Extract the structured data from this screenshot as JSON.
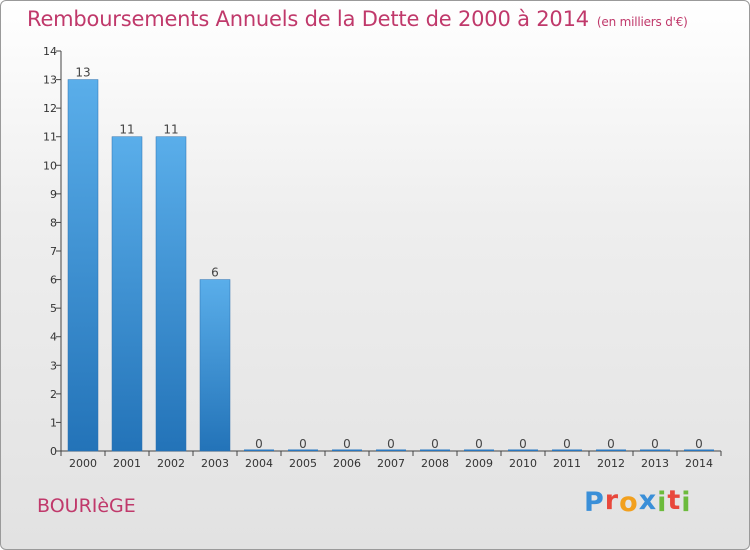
{
  "header": {
    "title": "Remboursements Annuels de la Dette de 2000 à 2014",
    "unit": "(en milliers d'€)"
  },
  "footer": {
    "commune": "BOURIèGE",
    "logo_text": "Proxiti",
    "logo_colors": [
      "#3a8fd8",
      "#e8483c",
      "#f2a01e",
      "#3a8fd8",
      "#6cbb3c",
      "#e8483c",
      "#6cbb3c"
    ]
  },
  "chart_data": {
    "type": "bar",
    "title": "Remboursements Annuels de la Dette de 2000 à 2014",
    "categories": [
      "2000",
      "2001",
      "2002",
      "2003",
      "2004",
      "2005",
      "2006",
      "2007",
      "2008",
      "2009",
      "2010",
      "2011",
      "2012",
      "2013",
      "2014"
    ],
    "values": [
      13,
      11,
      11,
      6,
      0,
      0,
      0,
      0,
      0,
      0,
      0,
      0,
      0,
      0,
      0
    ],
    "data_labels": [
      "13",
      "11",
      "11",
      "6",
      "0",
      "0",
      "0",
      "0",
      "0",
      "0",
      "0",
      "0",
      "0",
      "0",
      "0"
    ],
    "y_ticks": [
      0,
      1,
      2,
      3,
      4,
      5,
      6,
      7,
      8,
      9,
      10,
      11,
      12,
      13,
      14
    ],
    "ylim": [
      0,
      14
    ],
    "xlabel": "",
    "ylabel": "",
    "grid": false,
    "bar_color": "#3d8fd6"
  }
}
